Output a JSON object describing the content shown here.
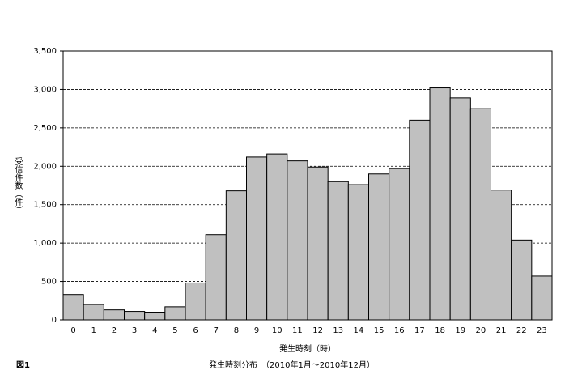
{
  "chart_data": {
    "type": "bar",
    "figure_label": "図1",
    "title": "発生時刻分布　（2010年1月～2010年12月）",
    "x_label": "発生時刻（時）",
    "y_label": "受信件数（件）",
    "categories": [
      "0",
      "1",
      "2",
      "3",
      "4",
      "5",
      "6",
      "7",
      "8",
      "9",
      "10",
      "11",
      "12",
      "13",
      "14",
      "15",
      "16",
      "17",
      "18",
      "19",
      "20",
      "21",
      "22",
      "23"
    ],
    "values": [
      330,
      200,
      130,
      110,
      100,
      170,
      480,
      1110,
      1680,
      2120,
      2160,
      2070,
      1990,
      1800,
      1760,
      1900,
      1970,
      2600,
      3020,
      2890,
      2750,
      1690,
      1040,
      570
    ],
    "color": "#c0c0c0",
    "ylim": [
      0,
      3500
    ],
    "yticks": [
      0,
      {
        "value": 500,
        "label": "500"
      },
      {
        "value": 1000,
        "label": "1,000"
      },
      {
        "value": 1500,
        "label": "1,500"
      },
      {
        "value": 2000,
        "label": "2,000"
      },
      {
        "value": 2500,
        "label": "2,500"
      },
      {
        "value": 3000,
        "label": "3,000"
      },
      {
        "value": 3500,
        "label": "3,500"
      }
    ],
    "grid": true
  }
}
